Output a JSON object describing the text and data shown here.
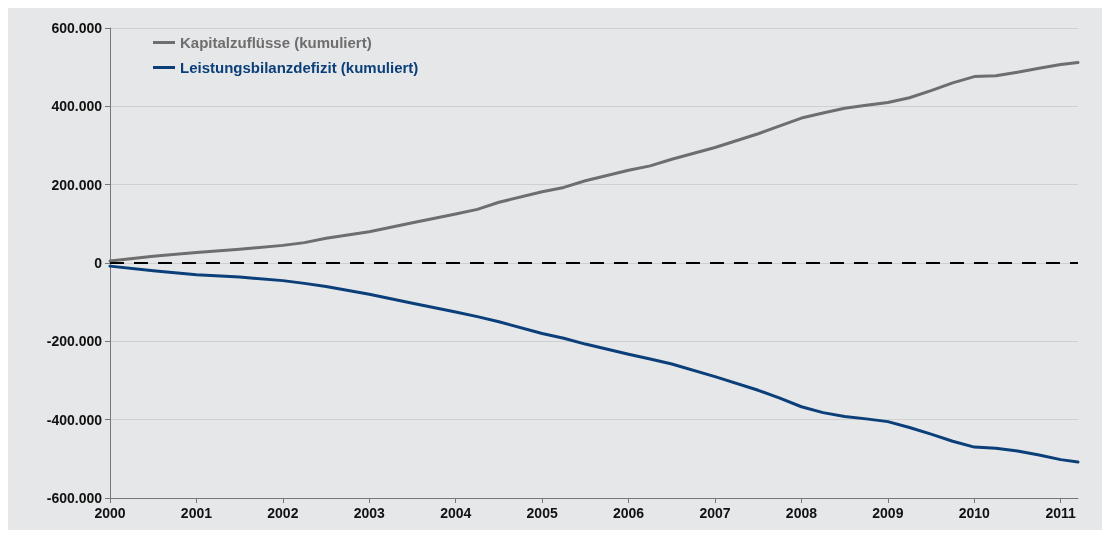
{
  "chart_data": {
    "type": "line",
    "xlim": [
      2000,
      2011.2
    ],
    "xticks": [
      2000,
      2001,
      2002,
      2003,
      2004,
      2005,
      2006,
      2007,
      2008,
      2009,
      2010,
      2011
    ],
    "ylim": [
      -600000,
      600000
    ],
    "yticks": [
      {
        "value": -600000,
        "label": "-600.000"
      },
      {
        "value": -400000,
        "label": "-400.000"
      },
      {
        "value": -200000,
        "label": "-200.000"
      },
      {
        "value": 0,
        "label": "0"
      },
      {
        "value": 200000,
        "label": "200.000"
      },
      {
        "value": 400000,
        "label": "400.000"
      },
      {
        "value": 600000,
        "label": "600.000"
      }
    ],
    "grid": "y",
    "legend": "top left",
    "marker": "none",
    "line_style": "solid",
    "x": [
      2000,
      2000.5,
      2001,
      2001.5,
      2002,
      2002.25,
      2002.5,
      2003,
      2003.5,
      2004,
      2004.25,
      2004.5,
      2005,
      2005.25,
      2005.5,
      2006,
      2006.25,
      2006.5,
      2007,
      2007.5,
      2007.75,
      2008,
      2008.25,
      2008.5,
      2008.75,
      2009,
      2009.25,
      2009.5,
      2009.75,
      2010,
      2010.25,
      2010.5,
      2010.75,
      2011,
      2011.2
    ],
    "series": [
      {
        "name": "Kapitalzuflüsse (kumuliert)",
        "color": "#6e6e6e",
        "values": [
          5000,
          17000,
          27000,
          35000,
          45000,
          52000,
          63000,
          80000,
          103000,
          125000,
          137000,
          155000,
          182000,
          193000,
          210000,
          237000,
          248000,
          265000,
          295000,
          330000,
          350000,
          370000,
          383000,
          395000,
          403000,
          410000,
          422000,
          440000,
          460000,
          476000,
          478000,
          487000,
          497000,
          507000,
          512000
        ]
      },
      {
        "name": "Leistungsbilanzdefizit (kumuliert)",
        "color": "#0b3f7a",
        "values": [
          -8000,
          -20000,
          -30000,
          -36000,
          -45000,
          -52000,
          -60000,
          -80000,
          -103000,
          -125000,
          -137000,
          -150000,
          -180000,
          -192000,
          -207000,
          -233000,
          -245000,
          -258000,
          -290000,
          -325000,
          -345000,
          -367000,
          -382000,
          -392000,
          -398000,
          -405000,
          -420000,
          -437000,
          -455000,
          -470000,
          -473000,
          -480000,
          -490000,
          -502000,
          -508000
        ]
      }
    ],
    "ref_lines": [
      {
        "axis": "y",
        "value": 0,
        "label": null,
        "color": "#000000",
        "line_style": "dashed"
      }
    ]
  }
}
